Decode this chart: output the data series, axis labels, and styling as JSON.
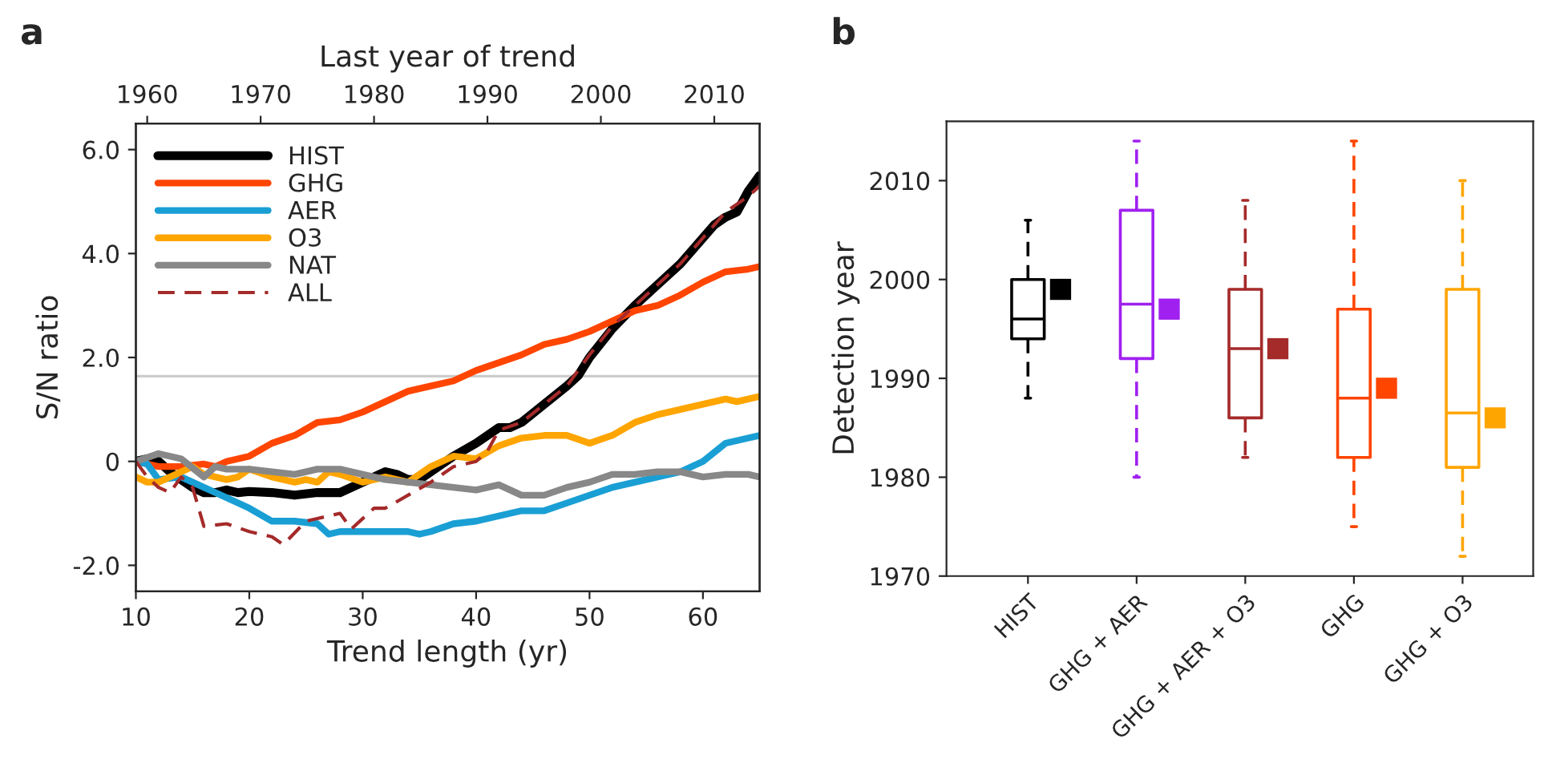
{
  "chart_data": [
    {
      "type": "line",
      "xlabel": "Trend length (yr)",
      "ylabel": "S/N ratio",
      "x2label": "Last year of trend",
      "annotations": [
        "a"
      ],
      "xlim": [
        10,
        65
      ],
      "xticks": [
        10,
        20,
        30,
        40,
        50,
        60
      ],
      "x2lim": [
        1959,
        2014
      ],
      "x2ticks": [
        1960,
        1970,
        1980,
        1990,
        2000,
        2010
      ],
      "ylim": [
        -2.5,
        6.5
      ],
      "yticks": [
        {
          "value": -2,
          "label": "-2.0"
        },
        0,
        {
          "value": 2,
          "label": "2.0"
        },
        {
          "value": 4,
          "label": "4.0"
        },
        {
          "value": 6,
          "label": "6.0"
        }
      ],
      "ref_lines": [
        {
          "axis": "y",
          "value": 1.64,
          "color": "#cccccc"
        }
      ],
      "legend": "top left",
      "grid": false,
      "series": [
        {
          "name": "HIST",
          "color": "#000000",
          "x": [
            10,
            11,
            12,
            13,
            14,
            15,
            16,
            17,
            18,
            19,
            20,
            22,
            24,
            26,
            28,
            30,
            32,
            33,
            34,
            35,
            36,
            38,
            40,
            42,
            43,
            44,
            46,
            48,
            49,
            50,
            52,
            54,
            56,
            58,
            60,
            61,
            62,
            63,
            64,
            65
          ],
          "values": [
            0,
            0.05,
            0,
            -0.2,
            -0.35,
            -0.5,
            -0.6,
            -0.6,
            -0.55,
            -0.6,
            -0.58,
            -0.6,
            -0.65,
            -0.6,
            -0.6,
            -0.4,
            -0.2,
            -0.25,
            -0.35,
            -0.35,
            -0.2,
            0.1,
            0.35,
            0.65,
            0.65,
            0.75,
            1.1,
            1.45,
            1.65,
            2.0,
            2.55,
            3.0,
            3.4,
            3.8,
            4.3,
            4.55,
            4.7,
            4.8,
            5.2,
            5.5
          ]
        },
        {
          "name": "GHG",
          "color": "#ff4500",
          "x": [
            10,
            12,
            14,
            16,
            17,
            18,
            20,
            22,
            24,
            26,
            28,
            30,
            32,
            34,
            36,
            38,
            40,
            42,
            44,
            46,
            48,
            50,
            52,
            54,
            56,
            58,
            60,
            62,
            64,
            65
          ],
          "values": [
            0,
            -0.1,
            -0.1,
            -0.05,
            -0.1,
            0,
            0.1,
            0.35,
            0.5,
            0.75,
            0.8,
            0.95,
            1.15,
            1.35,
            1.45,
            1.55,
            1.75,
            1.9,
            2.05,
            2.25,
            2.35,
            2.5,
            2.7,
            2.9,
            3.0,
            3.2,
            3.45,
            3.65,
            3.7,
            3.75
          ]
        },
        {
          "name": "AER",
          "color": "#1a9fd4",
          "x": [
            10,
            11,
            12,
            14,
            16,
            18,
            20,
            22,
            24,
            26,
            27,
            28,
            30,
            32,
            34,
            35,
            36,
            38,
            40,
            42,
            44,
            46,
            48,
            50,
            52,
            54,
            56,
            58,
            60,
            62,
            64,
            65
          ],
          "values": [
            0,
            -0.05,
            -0.35,
            -0.3,
            -0.5,
            -0.7,
            -0.9,
            -1.15,
            -1.15,
            -1.2,
            -1.4,
            -1.35,
            -1.35,
            -1.35,
            -1.35,
            -1.4,
            -1.35,
            -1.2,
            -1.15,
            -1.05,
            -0.95,
            -0.95,
            -0.8,
            -0.65,
            -0.5,
            -0.4,
            -0.3,
            -0.2,
            0,
            0.35,
            0.45,
            0.5
          ]
        },
        {
          "name": "O3",
          "color": "#ffa500",
          "x": [
            10,
            11,
            12,
            14,
            15,
            16,
            18,
            19,
            20,
            22,
            24,
            25,
            26,
            27,
            28,
            30,
            32,
            34,
            36,
            38,
            40,
            42,
            44,
            46,
            48,
            50,
            52,
            54,
            56,
            58,
            60,
            62,
            63,
            65
          ],
          "values": [
            -0.3,
            -0.4,
            -0.4,
            -0.2,
            -0.1,
            -0.25,
            -0.35,
            -0.3,
            -0.15,
            -0.3,
            -0.4,
            -0.35,
            -0.4,
            -0.2,
            -0.25,
            -0.4,
            -0.3,
            -0.4,
            -0.1,
            0.1,
            0.05,
            0.3,
            0.45,
            0.5,
            0.5,
            0.35,
            0.5,
            0.75,
            0.9,
            1.0,
            1.1,
            1.2,
            1.15,
            1.25
          ]
        },
        {
          "name": "NAT",
          "color": "#888888",
          "x": [
            10,
            12,
            14,
            16,
            17,
            18,
            20,
            22,
            24,
            26,
            28,
            30,
            32,
            34,
            36,
            38,
            40,
            42,
            44,
            46,
            48,
            50,
            52,
            54,
            56,
            58,
            60,
            62,
            64,
            65
          ],
          "values": [
            0,
            0.15,
            0.05,
            -0.3,
            -0.1,
            -0.15,
            -0.15,
            -0.2,
            -0.25,
            -0.15,
            -0.15,
            -0.25,
            -0.35,
            -0.4,
            -0.45,
            -0.5,
            -0.55,
            -0.45,
            -0.65,
            -0.65,
            -0.5,
            -0.4,
            -0.25,
            -0.25,
            -0.2,
            -0.2,
            -0.3,
            -0.25,
            -0.25,
            -0.3
          ]
        },
        {
          "name": "ALL",
          "color": "#a52a2a",
          "line_style": "dashed",
          "x": [
            10,
            11,
            12,
            13,
            14,
            15,
            16,
            18,
            20,
            22,
            23,
            25,
            26,
            28,
            29,
            31,
            32,
            34,
            36,
            38,
            40,
            41,
            42,
            44,
            46,
            48,
            50,
            52,
            54,
            56,
            58,
            60,
            62,
            64,
            65
          ],
          "values": [
            0,
            -0.3,
            -0.5,
            -0.6,
            -0.3,
            -0.5,
            -1.25,
            -1.2,
            -1.35,
            -1.45,
            -1.6,
            -1.15,
            -1.1,
            -1.0,
            -1.3,
            -0.9,
            -0.9,
            -0.65,
            -0.4,
            -0.1,
            0.0,
            0.2,
            0.6,
            0.75,
            1.1,
            1.45,
            2.05,
            2.6,
            3.0,
            3.4,
            3.8,
            4.3,
            4.8,
            5.1,
            5.3
          ]
        }
      ]
    },
    {
      "type": "box",
      "ylabel": "Detection year",
      "annotations": [
        "b"
      ],
      "categories": [
        "HIST",
        "GHG + AER",
        "GHG + AER + O3",
        "GHG",
        "GHG + O3"
      ],
      "ylim": [
        1970,
        2016
      ],
      "yticks": [
        1970,
        1980,
        1990,
        2000,
        2010
      ],
      "grid": false,
      "line_style": "dashed",
      "colors": [
        "#000000",
        "#a020f0",
        "#a52a2a",
        "#ff4500",
        "#ffa500"
      ],
      "boxes": [
        {
          "low": 1988,
          "q1": 1994,
          "median": 1996,
          "q3": 2000,
          "high": 2006
        },
        {
          "low": 1980,
          "q1": 1992,
          "median": 1997.5,
          "q3": 2007,
          "high": 2014
        },
        {
          "low": 1982,
          "q1": 1986,
          "median": 1993,
          "q3": 1999,
          "high": 2008
        },
        {
          "low": 1975,
          "q1": 1982,
          "median": 1988,
          "q3": 1997,
          "high": 2014
        },
        {
          "low": 1972,
          "q1": 1981,
          "median": 1986.5,
          "q3": 1999,
          "high": 2010
        }
      ],
      "series": [
        {
          "type": "scatter",
          "marker": "square",
          "x": [
            "HIST",
            "GHG + AER",
            "GHG + AER + O3",
            "GHG",
            "GHG + O3"
          ],
          "values": [
            1999,
            1997,
            1993,
            1989,
            1986
          ],
          "colors": [
            "#000000",
            "#a020f0",
            "#a52a2a",
            "#ff4500",
            "#ffa500"
          ]
        }
      ]
    }
  ]
}
